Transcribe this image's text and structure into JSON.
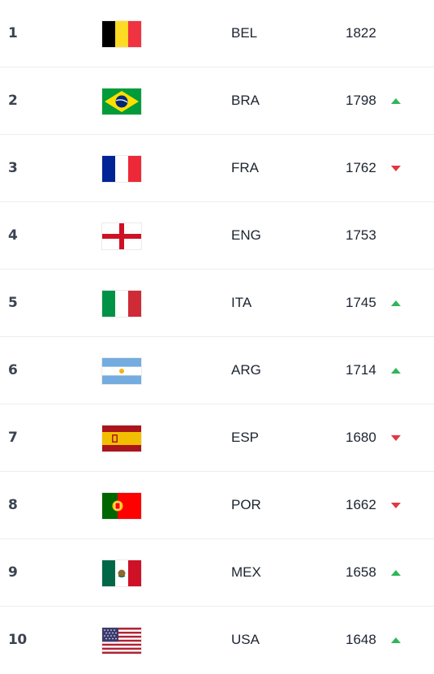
{
  "rankings": [
    {
      "rank": "1",
      "country": "BEL",
      "points": "1822",
      "trend": "none",
      "flag": "belgium-flag-icon"
    },
    {
      "rank": "2",
      "country": "BRA",
      "points": "1798",
      "trend": "up",
      "flag": "brazil-flag-icon"
    },
    {
      "rank": "3",
      "country": "FRA",
      "points": "1762",
      "trend": "down",
      "flag": "france-flag-icon"
    },
    {
      "rank": "4",
      "country": "ENG",
      "points": "1753",
      "trend": "none",
      "flag": "england-flag-icon"
    },
    {
      "rank": "5",
      "country": "ITA",
      "points": "1745",
      "trend": "up",
      "flag": "italy-flag-icon"
    },
    {
      "rank": "6",
      "country": "ARG",
      "points": "1714",
      "trend": "up",
      "flag": "argentina-flag-icon"
    },
    {
      "rank": "7",
      "country": "ESP",
      "points": "1680",
      "trend": "down",
      "flag": "spain-flag-icon"
    },
    {
      "rank": "8",
      "country": "POR",
      "points": "1662",
      "trend": "down",
      "flag": "portugal-flag-icon"
    },
    {
      "rank": "9",
      "country": "MEX",
      "points": "1658",
      "trend": "up",
      "flag": "mexico-flag-icon"
    },
    {
      "rank": "10",
      "country": "USA",
      "points": "1648",
      "trend": "up",
      "flag": "usa-flag-icon"
    }
  ],
  "colors": {
    "trend_up": "#2fb65a",
    "trend_down": "#e0383e",
    "divider": "#eceef2"
  }
}
